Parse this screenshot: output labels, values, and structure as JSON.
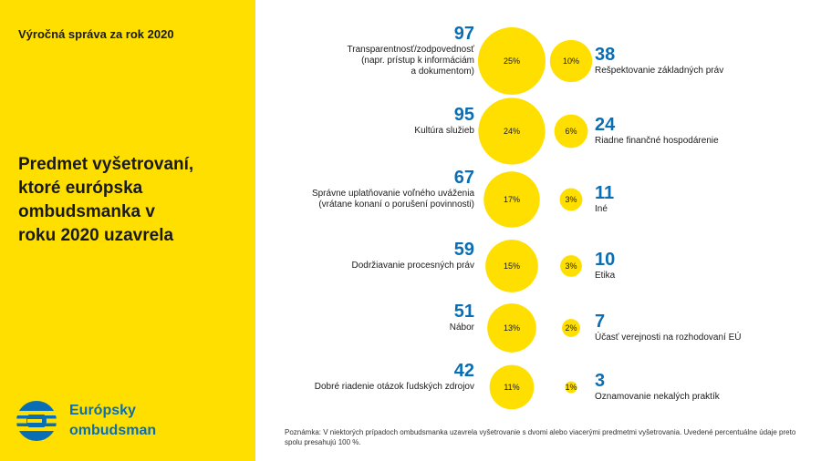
{
  "header": {
    "report_label": "Výročná správa za rok 2020"
  },
  "title": "Predmet vyšetrovaní,\nktoré európska\nombudsmanka v\nroku 2020 uzavrela",
  "brand": {
    "name": "Európsky\nombudsman",
    "accent_color": "#0A6EB4",
    "panel_color": "#FFDF00"
  },
  "chart_data": {
    "type": "bubble",
    "bubble_color": "#FFDF00",
    "left_column": [
      {
        "value": 97,
        "percent": "25%",
        "label": [
          "Transparentnosť/zodpovednosť",
          "(napr. prístup k informáciám",
          "a dokumentom)"
        ]
      },
      {
        "value": 95,
        "percent": "24%",
        "label": [
          "Kultúra služieb"
        ]
      },
      {
        "value": 67,
        "percent": "17%",
        "label": [
          "Správne uplatňovanie voľného uváženia",
          "(vrátane konaní o porušení povinnosti)"
        ]
      },
      {
        "value": 59,
        "percent": "15%",
        "label": [
          "Dodržiavanie procesných práv"
        ]
      },
      {
        "value": 51,
        "percent": "13%",
        "label": [
          "Nábor"
        ]
      },
      {
        "value": 42,
        "percent": "11%",
        "label": [
          "Dobré riadenie otázok ľudských zdrojov"
        ]
      }
    ],
    "right_column": [
      {
        "value": 38,
        "percent": "10%",
        "label": [
          "Rešpektovanie základných práv"
        ]
      },
      {
        "value": 24,
        "percent": "6%",
        "label": [
          "Riadne finančné hospodárenie"
        ]
      },
      {
        "value": 11,
        "percent": "3%",
        "label": [
          "Iné"
        ]
      },
      {
        "value": 10,
        "percent": "3%",
        "label": [
          "Etika"
        ]
      },
      {
        "value": 7,
        "percent": "2%",
        "label": [
          "Účasť verejnosti na rozhodovaní EÚ"
        ]
      },
      {
        "value": 3,
        "percent": "1%",
        "label": [
          "Oznamovanie nekalých praktík"
        ]
      }
    ]
  },
  "footnote": "Poznámka: V niektorých prípadoch ombudsmanka uzavrela vyšetrovanie s dvomi alebo viacerými predmetmi vyšetrovania. Uvedené percentuálne údaje preto spolu presahujú 100 %."
}
